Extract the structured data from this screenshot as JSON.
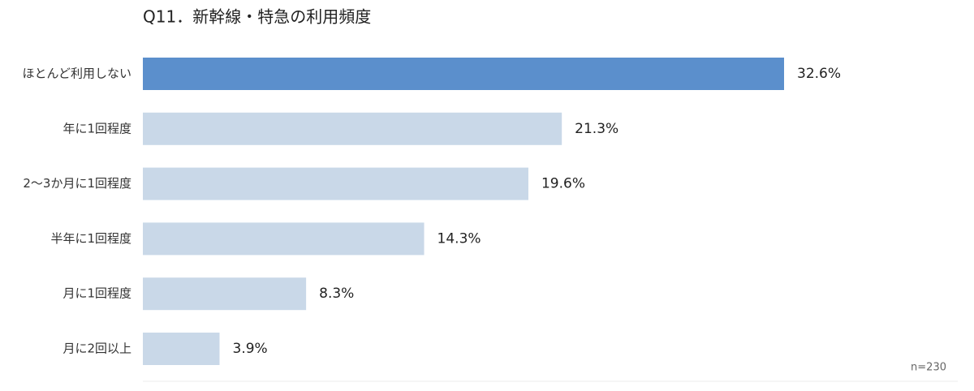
{
  "chart_data": {
    "type": "hbar",
    "title": "Q11．新幹線・特急の利用頻度",
    "categories": [
      "ほとんど利用しない",
      "年に1回程度",
      "2〜3か月に1回程度",
      "半年に1回程度",
      "月に1回程度",
      "月に2回以上"
    ],
    "values": [
      32.6,
      21.3,
      19.6,
      14.3,
      8.3,
      3.9
    ],
    "value_labels": [
      "32.6%",
      "21.3%",
      "19.6%",
      "14.3%",
      "8.3%",
      "3.9%"
    ],
    "colors": [
      "#5b8fcc",
      "#c9d8e8",
      "#c9d8e8",
      "#c9d8e8",
      "#c9d8e8",
      "#c9d8e8"
    ],
    "note": "n=230"
  }
}
